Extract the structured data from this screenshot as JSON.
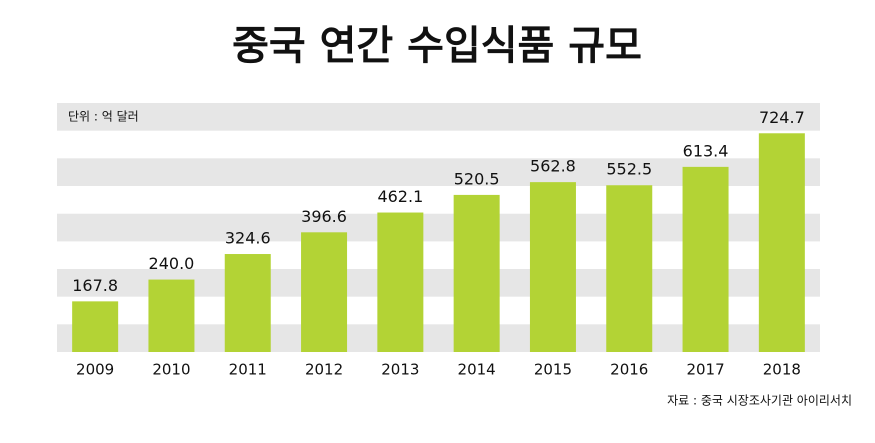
{
  "chart_data": {
    "type": "bar",
    "title": "중국 연간 수입식품 규모",
    "unit_label": "단위 : 억 달러",
    "source": "자료 : 중국 시장조사기관 아이리서치",
    "categories": [
      "2009",
      "2010",
      "2011",
      "2012",
      "2013",
      "2014",
      "2015",
      "2016",
      "2017",
      "2018"
    ],
    "values": [
      167.8,
      240.0,
      324.6,
      396.6,
      462.1,
      520.5,
      562.8,
      552.5,
      613.4,
      724.7
    ],
    "value_labels": [
      "167.8",
      "240.0",
      "324.6",
      "396.6",
      "462.1",
      "520.5",
      "562.8",
      "552.5",
      "613.4",
      "724.7"
    ],
    "color": "#b3d335",
    "ylim": [
      0,
      825
    ]
  }
}
